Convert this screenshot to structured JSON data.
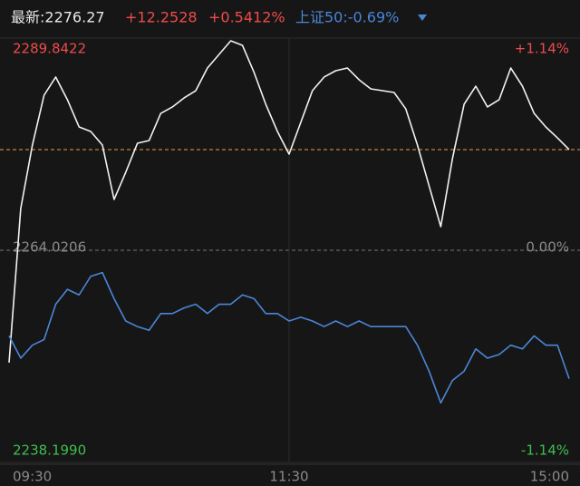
{
  "header": {
    "latest": "最新:2276.27",
    "change": "+12.2528",
    "change_pct": "+0.5412%",
    "compare": "上证50:-0.69%"
  },
  "chart_data": {
    "type": "line",
    "x": [
      0,
      5,
      10,
      15,
      20,
      25,
      30,
      35,
      40,
      45,
      50,
      55,
      60,
      65,
      70,
      75,
      80,
      85,
      90,
      95,
      100,
      105,
      110,
      115,
      120,
      125,
      130,
      135,
      140,
      145,
      150,
      155,
      160,
      165,
      170,
      175,
      180,
      185,
      190,
      195,
      200,
      205,
      210,
      215,
      220,
      225,
      230,
      235,
      240
    ],
    "xlim": [
      0,
      240
    ],
    "xticks": [
      {
        "value": 0,
        "label": "09:30"
      },
      {
        "value": 120,
        "label": "11:30"
      },
      {
        "value": 240,
        "label": "15:00"
      }
    ],
    "ylim": [
      2238.199,
      2289.8422
    ],
    "yticks": [
      {
        "value": 2289.8422,
        "label": "2289.8422"
      },
      {
        "value": 2264.0206,
        "label": "2264.0206"
      },
      {
        "value": 2238.199,
        "label": "2238.1990"
      }
    ],
    "y2lim": [
      -1.14,
      1.14
    ],
    "y2ticks": [
      {
        "value": 1.14,
        "label": "+1.14%"
      },
      {
        "value": 0,
        "label": "0.00%"
      },
      {
        "value": -1.14,
        "label": "-1.14%"
      }
    ],
    "hlines": [
      {
        "value": 2276.27,
        "color": "#e8a040"
      }
    ],
    "series": [
      {
        "color": "#f2f2f2",
        "values": [
          2250.34,
          2269.1,
          2276.82,
          2282.89,
          2285.1,
          2282.34,
          2279.03,
          2278.48,
          2276.82,
          2270.2,
          2273.51,
          2277.04,
          2277.37,
          2280.68,
          2281.46,
          2282.56,
          2283.44,
          2286.2,
          2287.86,
          2289.51,
          2288.96,
          2285.65,
          2281.79,
          2278.48,
          2275.72,
          2279.58,
          2283.44,
          2285.1,
          2285.87,
          2286.2,
          2284.77,
          2283.66,
          2283.44,
          2283.22,
          2281.23,
          2276.82,
          2271.85,
          2266.89,
          2275.17,
          2281.79,
          2283.99,
          2281.46,
          2282.34,
          2286.2,
          2283.99,
          2280.68,
          2279.03,
          2277.7,
          2276.27
        ]
      },
      {
        "color": "#4a86d8",
        "axis": "y2",
        "values": [
          -0.46,
          -0.58,
          -0.51,
          -0.48,
          -0.29,
          -0.21,
          -0.24,
          -0.14,
          -0.12,
          -0.26,
          -0.38,
          -0.41,
          -0.43,
          -0.34,
          -0.34,
          -0.31,
          -0.29,
          -0.34,
          -0.29,
          -0.29,
          -0.24,
          -0.26,
          -0.34,
          -0.34,
          -0.38,
          -0.36,
          -0.38,
          -0.41,
          -0.38,
          -0.41,
          -0.38,
          -0.41,
          -0.41,
          -0.41,
          -0.41,
          -0.51,
          -0.65,
          -0.82,
          -0.7,
          -0.65,
          -0.53,
          -0.58,
          -0.56,
          -0.51,
          -0.53,
          -0.46,
          -0.51,
          -0.51,
          -0.69
        ]
      }
    ]
  }
}
